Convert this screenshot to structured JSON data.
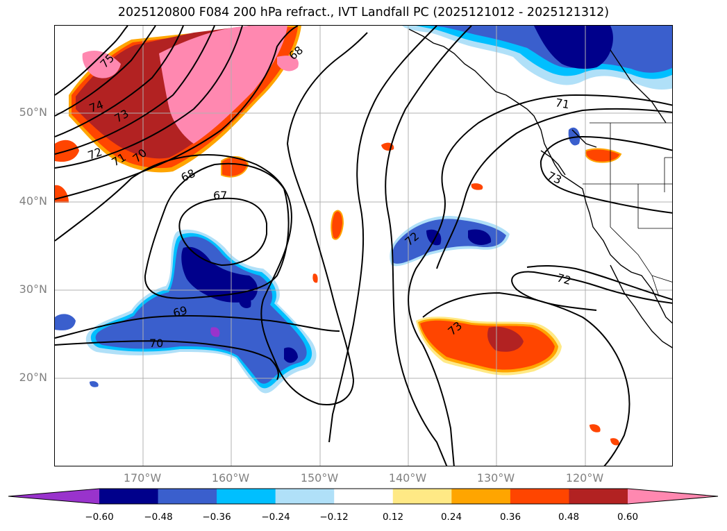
{
  "title": "2025120800 F084 200 hPa refract., IVT Landfall PC (2025121012 - 2025121312)",
  "map": {
    "lat_labels": [
      "50°N",
      "40°N",
      "30°N",
      "20°N"
    ],
    "lon_labels": [
      "170°W",
      "160°W",
      "150°W",
      "140°W",
      "130°W",
      "120°W"
    ],
    "contour_labels": [
      "75",
      "74",
      "73",
      "72",
      "71",
      "70",
      "68",
      "67",
      "68",
      "69",
      "70",
      "72",
      "73",
      "71",
      "73",
      "72"
    ],
    "colors": {
      "purple": "#9933cc",
      "navy": "#00008b",
      "royal_blue": "#3a5fcd",
      "deep_sky": "#00bfff",
      "light_blue": "#b0e0f8",
      "light_yellow": "#ffe985",
      "orange": "#ffa500",
      "orange_red": "#ff4500",
      "firebrick": "#b22222",
      "pink": "#ff88b0"
    }
  },
  "colorbar": {
    "ticks": [
      "−0.60",
      "−0.48",
      "−0.36",
      "−0.24",
      "−0.12",
      "0.12",
      "0.24",
      "0.36",
      "0.48",
      "0.60"
    ],
    "bins": [
      "#9933cc",
      "#00008b",
      "#3a5fcd",
      "#00bfff",
      "#b0e0f8",
      "#ffffff",
      "#ffe985",
      "#ffa500",
      "#ff4500",
      "#b22222",
      "#ff88b0"
    ]
  }
}
